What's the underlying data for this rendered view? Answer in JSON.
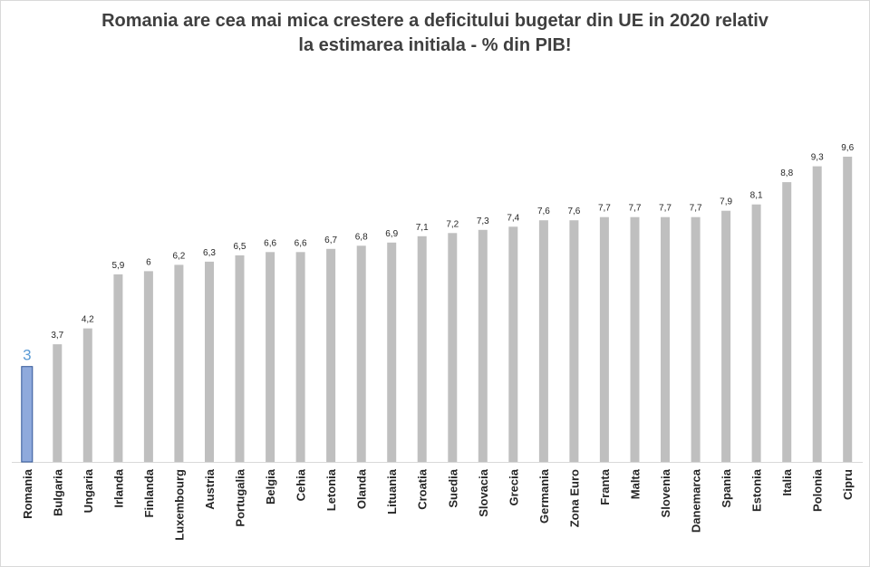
{
  "chart_data": {
    "type": "bar",
    "title_line1": "Romania are cea mai mica crestere a deficitului bugetar din UE in 2020 relativ",
    "title_line2": "la estimarea initiala - % din PIB!",
    "categories": [
      "Romania",
      "Bulgaria",
      "Ungaria",
      "Irlanda",
      "Finlanda",
      "Luxembourg",
      "Austria",
      "Portugalia",
      "Belgia",
      "Cehia",
      "Letonia",
      "Olanda",
      "Lituania",
      "Croatia",
      "Suedia",
      "Slovacia",
      "Grecia",
      "Germania",
      "Zona Euro",
      "Franta",
      "Malta",
      "Slovenia",
      "Danemarca",
      "Spania",
      "Estonia",
      "Italia",
      "Polonia",
      "Cipru"
    ],
    "values": [
      3,
      3.7,
      4.2,
      5.9,
      6,
      6.2,
      6.3,
      6.5,
      6.6,
      6.6,
      6.7,
      6.8,
      6.9,
      7.1,
      7.2,
      7.3,
      7.4,
      7.6,
      7.6,
      7.7,
      7.7,
      7.7,
      7.7,
      7.9,
      8.1,
      8.8,
      9.3,
      9.6
    ],
    "value_labels": [
      "3",
      "3,7",
      "4,2",
      "5,9",
      "6",
      "6,2",
      "6,3",
      "6,5",
      "6,6",
      "6,6",
      "6,7",
      "6,8",
      "6,9",
      "7,1",
      "7,2",
      "7,3",
      "7,4",
      "7,6",
      "7,6",
      "7,7",
      "7,7",
      "7,7",
      "7,7",
      "7,9",
      "8,1",
      "8,8",
      "9,3",
      "9,6"
    ],
    "highlight_category": "Romania",
    "ylim": [
      0,
      10
    ],
    "xlabel": "",
    "ylabel": "",
    "grid": false,
    "colors": {
      "bar": "#bfbfbf",
      "highlight_fill": "#8faadc",
      "highlight_stroke": "#2f5597",
      "highlight_label": "#5b9bd5",
      "axis": "#d9d9d9",
      "text": "#262626",
      "title": "#3f3f3f"
    }
  }
}
